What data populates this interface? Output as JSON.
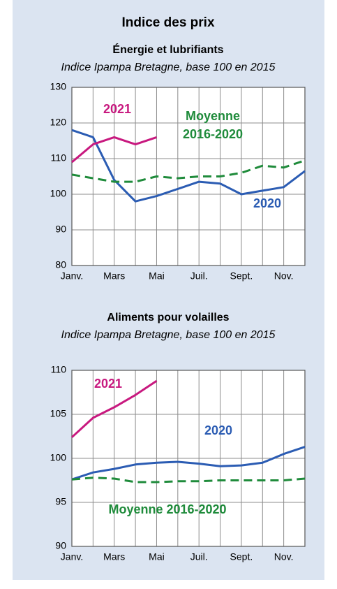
{
  "title": "Indice des prix",
  "chart_data": [
    {
      "type": "line",
      "title": "Énergie et lubrifiants",
      "subtitle": "Indice Ipampa Bretagne, base 100 en 2015",
      "categories": [
        "Janv.",
        null,
        "Mars",
        null,
        "Mai",
        null,
        "Juil.",
        null,
        "Sept.",
        null,
        "Nov.",
        null
      ],
      "ylim": [
        80,
        130
      ],
      "yticks": [
        80,
        90,
        100,
        110,
        120,
        130
      ],
      "grid": true,
      "series": [
        {
          "name": "2020",
          "color": "#2b5cb3",
          "dashed": false,
          "values": [
            118,
            116,
            104,
            98,
            99.5,
            101.5,
            103.5,
            103,
            100,
            101,
            102,
            106.5
          ]
        },
        {
          "name": "2021",
          "color": "#c8197f",
          "dashed": false,
          "values": [
            109,
            114,
            116,
            114,
            116,
            null,
            null,
            null,
            null,
            null,
            null,
            null
          ]
        },
        {
          "name": "Moyenne 2016-2020",
          "color": "#1f8b3b",
          "dashed": true,
          "values": [
            105.5,
            104.5,
            103.5,
            103.5,
            105,
            104.5,
            105,
            105,
            106,
            108,
            107.5,
            109.5
          ]
        }
      ]
    },
    {
      "type": "line",
      "title": "Aliments pour volailles",
      "subtitle": "Indice Ipampa Bretagne, base 100 en 2015",
      "categories": [
        "Janv.",
        null,
        "Mars",
        null,
        "Mai",
        null,
        "Juil.",
        null,
        "Sept.",
        null,
        "Nov.",
        null
      ],
      "ylim": [
        90,
        110
      ],
      "yticks": [
        90,
        95,
        100,
        105,
        110
      ],
      "grid": true,
      "series": [
        {
          "name": "2020",
          "color": "#2b5cb3",
          "dashed": false,
          "values": [
            97.6,
            98.4,
            98.8,
            99.3,
            99.5,
            99.6,
            99.4,
            99.1,
            99.2,
            99.5,
            100.5,
            101.3
          ]
        },
        {
          "name": "2021",
          "color": "#c8197f",
          "dashed": false,
          "values": [
            102.4,
            104.6,
            105.8,
            107.2,
            108.8,
            null,
            null,
            null,
            null,
            null,
            null,
            null
          ]
        },
        {
          "name": "Moyenne 2016-2020",
          "color": "#1f8b3b",
          "dashed": true,
          "values": [
            97.6,
            97.8,
            97.7,
            97.3,
            97.3,
            97.4,
            97.4,
            97.5,
            97.5,
            97.5,
            97.5,
            97.7
          ]
        }
      ]
    }
  ]
}
